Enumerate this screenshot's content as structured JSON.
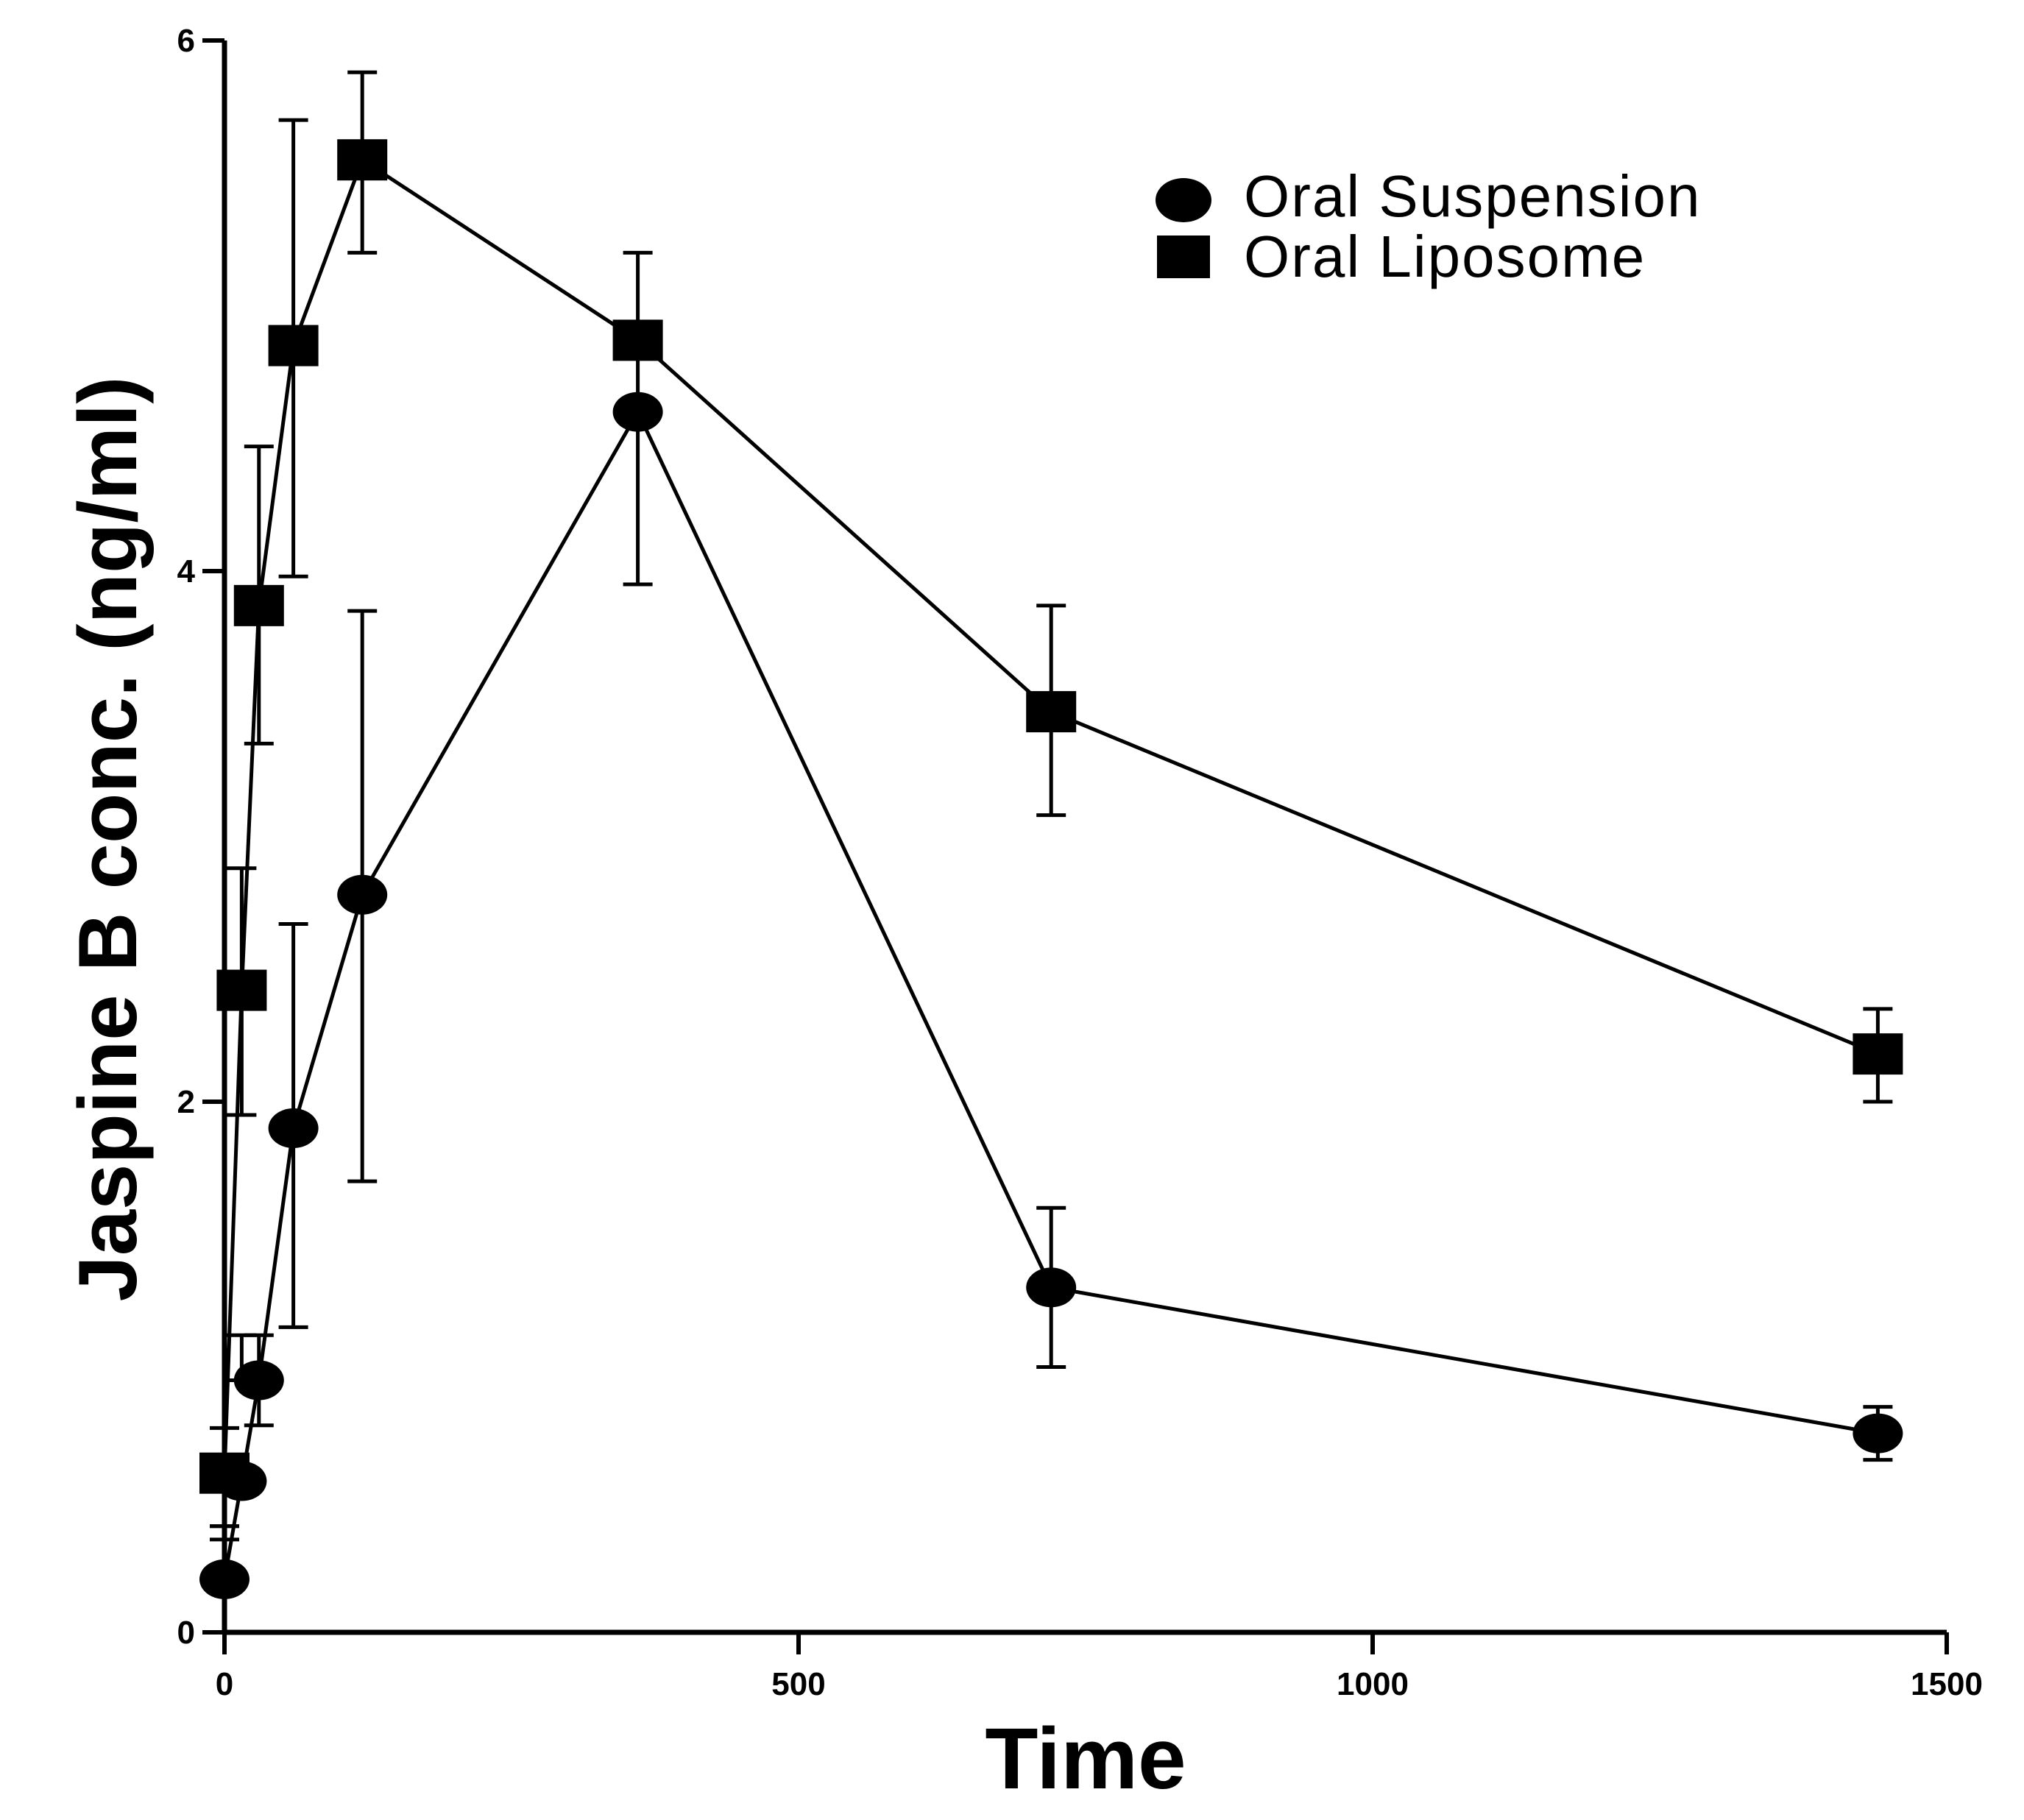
{
  "chart_data": {
    "type": "line",
    "title": "",
    "xlabel": "Time",
    "ylabel": "Jaspine B conc. (ng/ml)",
    "xlim": [
      0,
      1500
    ],
    "ylim": [
      0,
      6
    ],
    "xticks": [
      0,
      500,
      1000,
      1500
    ],
    "yticks": [
      0,
      2,
      4,
      6
    ],
    "grid": false,
    "legend_position": "top-right",
    "series": [
      {
        "name": "Oral Suspension",
        "marker": "circle",
        "x": [
          0,
          15,
          30,
          60,
          120,
          360,
          720,
          1440
        ],
        "y": [
          0.2,
          0.57,
          0.95,
          1.9,
          2.78,
          4.6,
          1.3,
          0.75
        ],
        "err_low": [
          0.4,
          0.95,
          0.78,
          1.15,
          1.7,
          3.95,
          1.0,
          0.65
        ],
        "err_high": [
          0.4,
          1.12,
          1.12,
          2.67,
          3.85,
          4.65,
          1.6,
          0.85
        ]
      },
      {
        "name": "Oral Liposome",
        "marker": "square",
        "x": [
          0,
          15,
          30,
          60,
          120,
          360,
          720,
          1440
        ],
        "y": [
          0.6,
          2.42,
          3.87,
          4.85,
          5.55,
          4.87,
          3.47,
          2.18
        ],
        "err_low": [
          0.35,
          1.95,
          3.35,
          3.98,
          5.2,
          4.65,
          3.08,
          2.0
        ],
        "err_high": [
          0.77,
          2.88,
          4.47,
          5.7,
          5.88,
          5.2,
          3.87,
          2.35
        ]
      }
    ]
  }
}
